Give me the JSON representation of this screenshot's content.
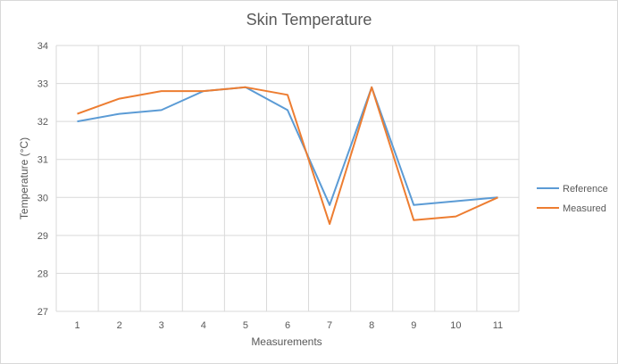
{
  "chart_data": {
    "type": "line",
    "title": "Skin Temperature",
    "xlabel": "Measurements",
    "ylabel": "Temperature (°C)",
    "categories": [
      "1",
      "2",
      "3",
      "4",
      "5",
      "6",
      "7",
      "8",
      "9",
      "10",
      "11"
    ],
    "ylim": [
      27,
      34
    ],
    "yticks": [
      "27",
      "28",
      "29",
      "30",
      "31",
      "32",
      "33",
      "34"
    ],
    "grid": true,
    "legend_position": "right",
    "series": [
      {
        "name": "Reference",
        "color": "#5b9bd5",
        "values": [
          32.0,
          32.2,
          32.3,
          32.8,
          32.9,
          32.3,
          29.8,
          32.9,
          29.8,
          29.9,
          30.0
        ]
      },
      {
        "name": "Measured",
        "color": "#ed7d31",
        "values": [
          32.2,
          32.6,
          32.8,
          32.8,
          32.9,
          32.7,
          29.3,
          32.9,
          29.4,
          29.5,
          30.0
        ]
      }
    ]
  }
}
